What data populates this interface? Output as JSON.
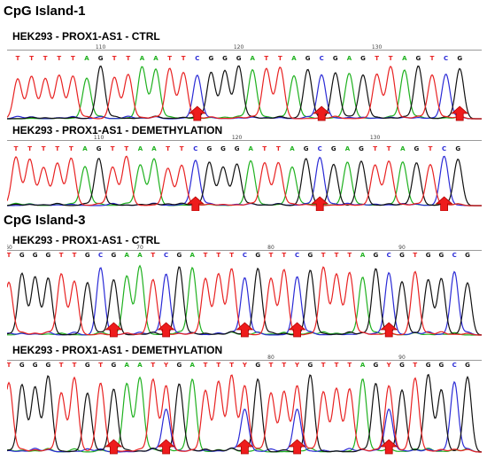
{
  "colors": {
    "A": "#1fb11f",
    "C": "#2b2bd6",
    "G": "#111111",
    "T": "#e82222",
    "Y": "#e82222",
    "arrow": "#ee1c1c",
    "arrow_edge": "#b00000"
  },
  "sections": [
    {
      "title": "CpG Island-1"
    },
    {
      "title": "CpG Island-3"
    }
  ],
  "traces": [
    {
      "label": "HEK293 - PROX1-AS1 - CTRL",
      "ticks": [
        "110",
        "120",
        "130"
      ],
      "bases": "TTTTTAGTTAATTCGGGATTAGCGAGTTAGTCG",
      "arrow_count": 3
    },
    {
      "label": "HEK293 - PROX1-AS1 - DEMETHYLATION",
      "ticks": [
        "110",
        "120",
        "130"
      ],
      "bases": "TTTTTAGTTAATTCGGGATTAGCGAGTTAGTCG",
      "arrow_count": 3
    },
    {
      "label": "HEK293 - PROX1-AS1 - CTRL",
      "ticks": [
        "60",
        "70",
        "80",
        "90"
      ],
      "bases": "TGGGTTGCGAATCGATTTCGTTCGTTTAGCGTGGCG",
      "arrow_count": 5
    },
    {
      "label": "HEK293 - PROX1-AS1 - DEMETHYLATION",
      "ticks": [
        "80",
        "90"
      ],
      "bases": "TGGGTTGTGAATYGATTTYGTTYGTTTAGYGTGGCG",
      "arrow_count": 5
    }
  ]
}
